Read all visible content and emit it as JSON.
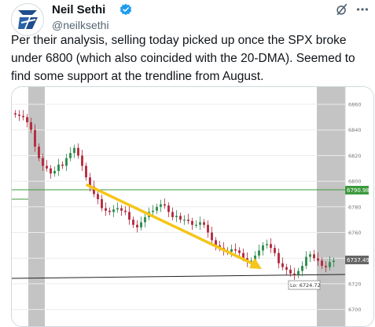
{
  "author": {
    "name": "Neil Sethi",
    "handle": "@neilksethi"
  },
  "tweet": {
    "text": "Per their analysis, selling today picked up once the SPX broke under 6800 (which also coincided with the 20-DMA).  Seemed to find some support at the trendline from August."
  },
  "icons": [
    "grok-icon",
    "more-icon",
    "verified-badge-icon"
  ],
  "colors": {
    "accent_blue": "#1d9bf0",
    "trend_arrow": "#f5c518",
    "ma_line": "#3c9a3c",
    "candle_up": "#2a8a4a",
    "candle_down": "#b3263a"
  },
  "chart_data": {
    "type": "candlestick",
    "y_ticks": [
      "6860",
      "6840",
      "6820",
      "6800",
      "6780",
      "6760",
      "6740",
      "6720",
      "6700"
    ],
    "ylim": [
      6700,
      6860
    ],
    "price_label": "6737.49",
    "level_label": "6790.98",
    "low_label": "Lo: 6724.72",
    "closes": [
      6852,
      6851,
      6850,
      6846,
      6840,
      6827,
      6818,
      6812,
      6810,
      6806,
      6808,
      6813,
      6812,
      6818,
      6822,
      6826,
      6820,
      6812,
      6803,
      6796,
      6790,
      6786,
      6779,
      6777,
      6776,
      6778,
      6779,
      6777,
      6776,
      6770,
      6766,
      6764,
      6768,
      6772,
      6776,
      6777,
      6780,
      6782,
      6781,
      6776,
      6772,
      6773,
      6770,
      6770,
      6769,
      6766,
      6766,
      6768,
      6766,
      6760,
      6754,
      6750,
      6748,
      6746,
      6745,
      6747,
      6746,
      6744,
      6740,
      6737,
      6738,
      6742,
      6746,
      6750,
      6751,
      6748,
      6744,
      6736,
      6733,
      6731,
      6728,
      6727,
      6730,
      6734,
      6741,
      6743,
      6740,
      6738,
      6734,
      6733,
      6737,
      6738
    ],
    "values_note": "approximate closes read from gridlines",
    "series": [
      {
        "name": "20-DMA",
        "value": 6790.98
      },
      {
        "name": "trendline from August",
        "values": [
          6728.5,
          6726
        ]
      }
    ]
  }
}
